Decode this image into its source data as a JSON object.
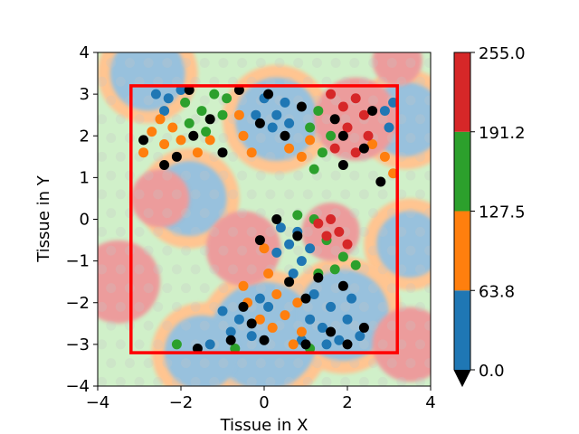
{
  "chart_data": {
    "type": "scatter",
    "xlabel": "Tissue in X",
    "ylabel": "Tissue in Y",
    "xlim": [
      -4,
      4
    ],
    "ylim": [
      -4,
      4
    ],
    "xticks": [
      -4,
      -2,
      0,
      2,
      4
    ],
    "yticks": [
      -4,
      -3,
      -2,
      -1,
      0,
      1,
      2,
      3,
      4
    ],
    "xtick_labels": [
      "−4",
      "−2",
      "0",
      "2",
      "4"
    ],
    "ytick_labels": [
      "−4",
      "−3",
      "−2",
      "−1",
      "0",
      "1",
      "2",
      "3",
      "4"
    ],
    "grid": false,
    "colorbar": {
      "type": "discrete",
      "bounds": [
        0,
        63.8,
        127.5,
        191.2,
        255
      ],
      "tick_labels": [
        "0.0",
        "63.8",
        "127.5",
        "191.2",
        "255.0"
      ],
      "colors": [
        "#1f77b4",
        "#ff7f0e",
        "#2ca02c",
        "#d62728"
      ],
      "under_color": "#000000",
      "extend": "min"
    },
    "roi_rectangle": {
      "x": [
        -3.2,
        3.2
      ],
      "y": [
        -3.2,
        3.2
      ],
      "color": "#ff0000"
    },
    "background_field": {
      "description_colors": [
        "#1f77b4",
        "#ff7f0e",
        "#2ca02c",
        "#d62728"
      ],
      "blobs": [
        {
          "x": -2.8,
          "y": 3.5,
          "r": 0.9,
          "c": 0
        },
        {
          "x": 0.3,
          "y": 2.4,
          "r": 1.0,
          "c": 0
        },
        {
          "x": 3.4,
          "y": 2.4,
          "r": 0.9,
          "c": 0
        },
        {
          "x": -1.8,
          "y": 0.5,
          "r": 0.9,
          "c": 0
        },
        {
          "x": 3.5,
          "y": -0.6,
          "r": 0.8,
          "c": 0
        },
        {
          "x": 0.0,
          "y": -2.8,
          "r": 1.3,
          "c": 0
        },
        {
          "x": 1.9,
          "y": -2.3,
          "r": 1.1,
          "c": 0
        },
        {
          "x": -1.5,
          "y": -3.2,
          "r": 0.9,
          "c": 0
        },
        {
          "x": -2.5,
          "y": 0.5,
          "r": 0.7,
          "c": 3
        },
        {
          "x": 2.2,
          "y": 2.4,
          "r": 1.0,
          "c": 3
        },
        {
          "x": 1.6,
          "y": -0.3,
          "r": 0.7,
          "c": 3
        },
        {
          "x": -3.5,
          "y": -1.5,
          "r": 1.0,
          "c": 3
        },
        {
          "x": -0.5,
          "y": -0.7,
          "r": 0.9,
          "c": 3
        },
        {
          "x": 3.5,
          "y": -3.0,
          "r": 0.9,
          "c": 3
        },
        {
          "x": 3.2,
          "y": 3.8,
          "r": 0.6,
          "c": 3
        }
      ]
    },
    "series": [
      {
        "name": "",
        "color": "#1f77b4",
        "points": [
          [
            -2.6,
            3.0
          ],
          [
            -2.3,
            2.9
          ],
          [
            -2.0,
            3.1
          ],
          [
            -2.4,
            2.6
          ],
          [
            0.0,
            2.9
          ],
          [
            0.3,
            2.5
          ],
          [
            0.2,
            2.2
          ],
          [
            0.5,
            2.8
          ],
          [
            0.6,
            2.3
          ],
          [
            -0.2,
            2.5
          ],
          [
            2.9,
            2.6
          ],
          [
            3.0,
            2.2
          ],
          [
            3.1,
            2.8
          ],
          [
            0.8,
            -0.3
          ],
          [
            0.6,
            -0.6
          ],
          [
            0.9,
            -1.0
          ],
          [
            0.4,
            -0.2
          ],
          [
            0.3,
            -0.8
          ],
          [
            1.1,
            -0.7
          ],
          [
            0.7,
            -1.3
          ],
          [
            -0.6,
            -2.4
          ],
          [
            -0.3,
            -2.8
          ],
          [
            -0.8,
            -2.7
          ],
          [
            -1.0,
            -2.2
          ],
          [
            0.1,
            -2.1
          ],
          [
            1.2,
            -1.8
          ],
          [
            1.6,
            -2.1
          ],
          [
            2.0,
            -2.4
          ],
          [
            1.8,
            -2.9
          ],
          [
            1.4,
            -2.6
          ],
          [
            2.3,
            -2.8
          ],
          [
            1.1,
            -2.4
          ],
          [
            1.5,
            -3.0
          ],
          [
            2.1,
            -1.9
          ],
          [
            0.9,
            -2.9
          ],
          [
            -0.1,
            -1.9
          ],
          [
            -1.3,
            -3.0
          ]
        ]
      },
      {
        "name": "",
        "color": "#ff7f0e",
        "points": [
          [
            -2.7,
            2.1
          ],
          [
            -2.4,
            1.8
          ],
          [
            -2.9,
            1.6
          ],
          [
            -2.5,
            2.4
          ],
          [
            -2.2,
            2.2
          ],
          [
            -2.0,
            1.9
          ],
          [
            -1.6,
            1.6
          ],
          [
            -1.3,
            1.9
          ],
          [
            -0.6,
            2.5
          ],
          [
            -0.5,
            2.0
          ],
          [
            -0.3,
            1.6
          ],
          [
            0.6,
            1.7
          ],
          [
            0.9,
            1.5
          ],
          [
            1.1,
            1.9
          ],
          [
            2.6,
            1.8
          ],
          [
            2.9,
            1.5
          ],
          [
            3.1,
            1.1
          ],
          [
            0.0,
            -0.7
          ],
          [
            0.1,
            -1.3
          ],
          [
            0.3,
            -1.8
          ],
          [
            0.8,
            -2.0
          ],
          [
            0.5,
            -2.3
          ],
          [
            0.9,
            -2.7
          ],
          [
            -0.4,
            -2.0
          ],
          [
            -0.1,
            -2.4
          ],
          [
            0.2,
            -2.6
          ],
          [
            0.7,
            -3.0
          ],
          [
            -0.5,
            -1.6
          ]
        ]
      },
      {
        "name": "",
        "color": "#2ca02c",
        "points": [
          [
            -1.9,
            2.8
          ],
          [
            -1.5,
            2.6
          ],
          [
            -1.2,
            3.0
          ],
          [
            -1.8,
            2.3
          ],
          [
            -1.4,
            2.1
          ],
          [
            -1.0,
            2.5
          ],
          [
            -0.9,
            2.9
          ],
          [
            1.3,
            2.6
          ],
          [
            1.1,
            2.2
          ],
          [
            1.6,
            2.0
          ],
          [
            1.4,
            1.6
          ],
          [
            1.2,
            1.2
          ],
          [
            0.8,
            0.1
          ],
          [
            1.2,
            0.0
          ],
          [
            1.5,
            -0.5
          ],
          [
            1.9,
            -0.9
          ],
          [
            1.7,
            -1.2
          ],
          [
            -2.1,
            -3.0
          ],
          [
            -0.7,
            -3.1
          ],
          [
            1.1,
            -3.1
          ],
          [
            2.2,
            -1.1
          ],
          [
            1.3,
            -1.3
          ]
        ]
      },
      {
        "name": "",
        "color": "#d62728",
        "points": [
          [
            1.6,
            3.0
          ],
          [
            1.9,
            2.7
          ],
          [
            2.2,
            2.9
          ],
          [
            2.0,
            2.2
          ],
          [
            2.4,
            2.5
          ],
          [
            1.7,
            1.7
          ],
          [
            2.2,
            1.6
          ],
          [
            2.5,
            2.0
          ],
          [
            1.5,
            -0.4
          ],
          [
            1.8,
            -0.3
          ],
          [
            1.6,
            0.0
          ],
          [
            2.0,
            -0.6
          ],
          [
            1.3,
            -0.1
          ]
        ]
      },
      {
        "name": "",
        "color": "#000000",
        "points": [
          [
            -1.8,
            3.1
          ],
          [
            -1.3,
            2.4
          ],
          [
            -0.6,
            3.1
          ],
          [
            0.1,
            3.0
          ],
          [
            -0.1,
            2.3
          ],
          [
            0.5,
            2.0
          ],
          [
            0.9,
            2.7
          ],
          [
            1.7,
            2.4
          ],
          [
            1.9,
            2.0
          ],
          [
            2.4,
            1.7
          ],
          [
            2.6,
            2.6
          ],
          [
            -2.4,
            1.3
          ],
          [
            -2.9,
            1.9
          ],
          [
            -1.7,
            2.0
          ],
          [
            -1.0,
            1.6
          ],
          [
            -2.1,
            1.5
          ],
          [
            2.8,
            0.9
          ],
          [
            1.9,
            1.3
          ],
          [
            -0.1,
            -0.5
          ],
          [
            0.6,
            -1.5
          ],
          [
            1.0,
            -1.9
          ],
          [
            1.3,
            -1.4
          ],
          [
            0.8,
            -0.4
          ],
          [
            1.9,
            -1.6
          ],
          [
            1.6,
            -2.7
          ],
          [
            -0.3,
            -2.5
          ],
          [
            0.0,
            -2.9
          ],
          [
            -0.5,
            -2.1
          ],
          [
            -0.8,
            -2.9
          ],
          [
            2.4,
            -2.6
          ],
          [
            2.0,
            -3.0
          ],
          [
            1.0,
            -3.0
          ],
          [
            0.3,
            0.0
          ],
          [
            -1.6,
            -3.1
          ]
        ]
      }
    ]
  }
}
